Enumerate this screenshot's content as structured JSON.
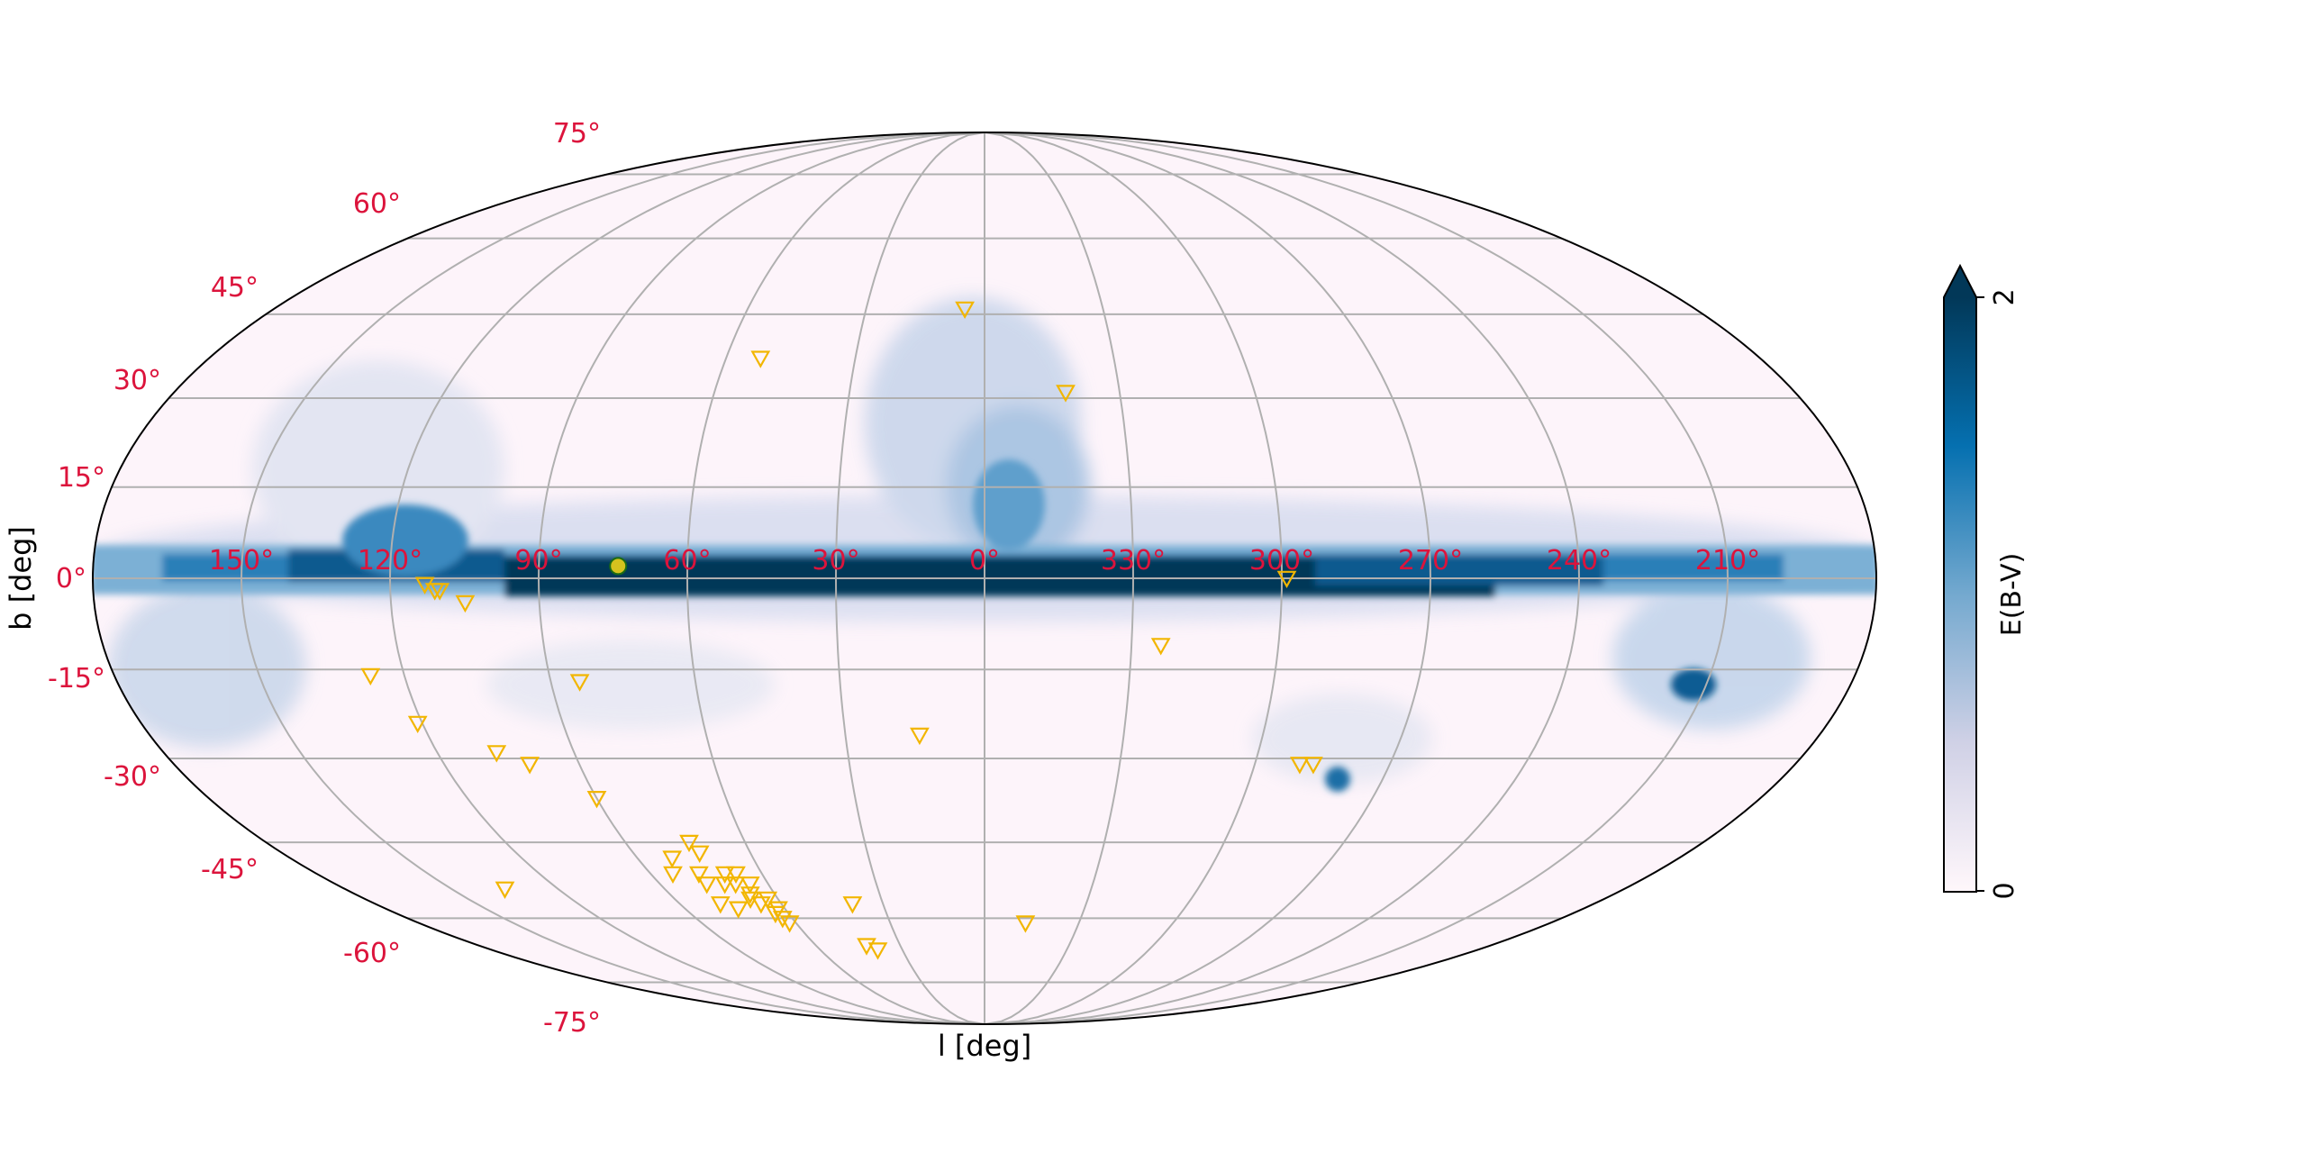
{
  "chart_data": {
    "type": "scatter",
    "projection": "mollweide",
    "coordinate_frame": "galactic",
    "longitude_direction": "increasing-left",
    "xlabel": "l [deg]",
    "ylabel": "b [deg]",
    "lat_ticks": [
      "75°",
      "60°",
      "45°",
      "30°",
      "15°",
      "0°",
      "-15°",
      "-30°",
      "-45°",
      "-60°",
      "-75°"
    ],
    "lon_ticks": [
      "150°",
      "120°",
      "90°",
      "60°",
      "30°",
      "0°",
      "330°",
      "300°",
      "270°",
      "240°",
      "210°"
    ],
    "tick_color": "#dc143c",
    "grid": true,
    "grid_color": "#b0b0b0",
    "background_map": {
      "quantity": "E(B-V)",
      "colormap": "PuBu",
      "vmin": 0,
      "vmax": 2,
      "colorbar_extend": "max",
      "colorbar_ticks": [
        "0",
        "2"
      ],
      "colorbar_label": "E(B-V)"
    },
    "series": [
      {
        "marker": "triangle-down-open",
        "color": "#f2b600",
        "points": [
          {
            "l": 5,
            "b": 46
          },
          {
            "l": 52,
            "b": 37
          },
          {
            "l": 342,
            "b": 31
          },
          {
            "l": 111,
            "b": -2
          },
          {
            "l": 110,
            "b": -2
          },
          {
            "l": 113,
            "b": -1
          },
          {
            "l": 105,
            "b": -4
          },
          {
            "l": 324,
            "b": -11
          },
          {
            "l": 299,
            "b": 0
          },
          {
            "l": 127,
            "b": -16
          },
          {
            "l": 84,
            "b": -17
          },
          {
            "l": 121,
            "b": -24
          },
          {
            "l": 14,
            "b": -26
          },
          {
            "l": 107,
            "b": -29
          },
          {
            "l": 101,
            "b": -31
          },
          {
            "l": 90,
            "b": -37
          },
          {
            "l": 290,
            "b": -31
          },
          {
            "l": 287,
            "b": -31
          },
          {
            "l": 74,
            "b": -45
          },
          {
            "l": 81,
            "b": -48
          },
          {
            "l": 73,
            "b": -47
          },
          {
            "l": 77,
            "b": -51
          },
          {
            "l": 70,
            "b": -51
          },
          {
            "l": 72,
            "b": -53
          },
          {
            "l": 84,
            "b": -51
          },
          {
            "l": 77,
            "b": -53
          },
          {
            "l": 67,
            "b": -51
          },
          {
            "l": 69,
            "b": -53
          },
          {
            "l": 65,
            "b": -53
          },
          {
            "l": 67,
            "b": -55
          },
          {
            "l": 68,
            "b": -56
          },
          {
            "l": 63,
            "b": -56
          },
          {
            "l": 66,
            "b": -57
          },
          {
            "l": 62,
            "b": -58
          },
          {
            "l": 78,
            "b": -57
          },
          {
            "l": 74,
            "b": -58
          },
          {
            "l": 64,
            "b": -59
          },
          {
            "l": 63,
            "b": -60
          },
          {
            "l": 62,
            "b": -61
          },
          {
            "l": 39,
            "b": -57
          },
          {
            "l": 42,
            "b": -66
          },
          {
            "l": 39,
            "b": -67
          },
          {
            "l": 347,
            "b": -61
          },
          {
            "l": 135,
            "b": -54
          }
        ]
      },
      {
        "marker": "circle-filled",
        "color": "#d4c21e",
        "edge_color": "#1b6b14",
        "points": [
          {
            "l": 74,
            "b": 2
          }
        ]
      }
    ]
  }
}
